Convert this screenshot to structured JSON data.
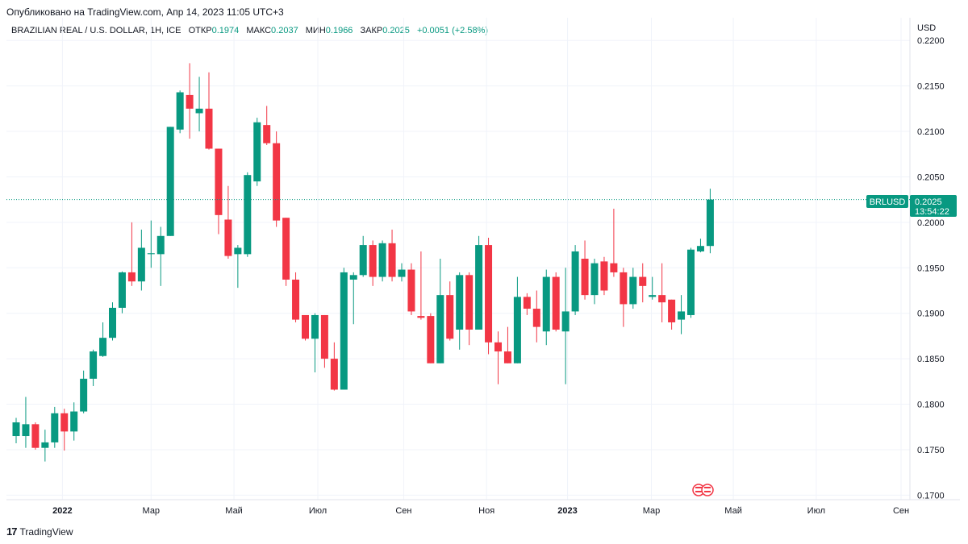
{
  "header": {
    "published": "Опубликовано на TradingView.com, Апр 14, 2023 11:05 UTC+3"
  },
  "legend": {
    "symbol": "BRAZILIAN REAL / U.S. DOLLAR, 1H, ICE",
    "open_label": "ОТКР",
    "open_value": "0.1974",
    "high_label": "МАКС",
    "high_value": "0.2037",
    "low_label": "МИН",
    "low_value": "0.1966",
    "close_label": "ЗАКР",
    "close_value": "0.2025",
    "change": "+0.0051 (+2.58%)"
  },
  "price_tag": {
    "ticker": "BRLUSD",
    "price": "0.2025",
    "countdown": "13:54:22"
  },
  "footer": {
    "logo_mark": "17",
    "brand": "TradingView"
  },
  "colors": {
    "up": "#089981",
    "down": "#F23645",
    "grid": "#F0F3FA",
    "last_line": "#089981"
  },
  "chart_data": {
    "type": "candlestick",
    "currency_label": "USD",
    "ylim": [
      0.1695,
      0.2225
    ],
    "y_ticks": [
      "0.2200",
      "0.2150",
      "0.2100",
      "0.2050",
      "0.2000",
      "0.1950",
      "0.1900",
      "0.1850",
      "0.1800",
      "0.1750",
      "0.1700"
    ],
    "x_ticks": [
      {
        "label": "2022",
        "bold": true,
        "i": 4.8
      },
      {
        "label": "Мар",
        "bold": false,
        "i": 14
      },
      {
        "label": "Май",
        "bold": false,
        "i": 22.6
      },
      {
        "label": "Июл",
        "bold": false,
        "i": 31.3
      },
      {
        "label": "Сен",
        "bold": false,
        "i": 40.2
      },
      {
        "label": "Ноя",
        "bold": false,
        "i": 48.8
      },
      {
        "label": "2023",
        "bold": true,
        "i": 57.2
      },
      {
        "label": "Май",
        "bold": false,
        "i": 74.4
      },
      {
        "label": "Мар",
        "bold": false,
        "i": 65.9
      },
      {
        "label": "Июл",
        "bold": false,
        "i": 83.0
      },
      {
        "label": "Сен",
        "bold": false,
        "i": 91.8
      }
    ],
    "last_price": 0.2025,
    "candles": [
      {
        "o": 0.1765,
        "h": 0.1785,
        "l": 0.1757,
        "c": 0.178
      },
      {
        "o": 0.1765,
        "h": 0.1808,
        "l": 0.1752,
        "c": 0.1778
      },
      {
        "o": 0.1778,
        "h": 0.178,
        "l": 0.175,
        "c": 0.1752
      },
      {
        "o": 0.1752,
        "h": 0.1772,
        "l": 0.1737,
        "c": 0.1758
      },
      {
        "o": 0.1758,
        "h": 0.1797,
        "l": 0.1752,
        "c": 0.179
      },
      {
        "o": 0.179,
        "h": 0.1795,
        "l": 0.1749,
        "c": 0.177
      },
      {
        "o": 0.177,
        "h": 0.1802,
        "l": 0.176,
        "c": 0.1792
      },
      {
        "o": 0.1792,
        "h": 0.1837,
        "l": 0.179,
        "c": 0.1828
      },
      {
        "o": 0.1828,
        "h": 0.186,
        "l": 0.182,
        "c": 0.1858
      },
      {
        "o": 0.1853,
        "h": 0.189,
        "l": 0.1852,
        "c": 0.1873
      },
      {
        "o": 0.1873,
        "h": 0.1912,
        "l": 0.187,
        "c": 0.1906
      },
      {
        "o": 0.1906,
        "h": 0.1946,
        "l": 0.19,
        "c": 0.1945
      },
      {
        "o": 0.1945,
        "h": 0.2,
        "l": 0.193,
        "c": 0.1935
      },
      {
        "o": 0.1935,
        "h": 0.1992,
        "l": 0.1925,
        "c": 0.1972
      },
      {
        "o": 0.1965,
        "h": 0.2002,
        "l": 0.195,
        "c": 0.1966
      },
      {
        "o": 0.1965,
        "h": 0.1995,
        "l": 0.193,
        "c": 0.1985
      },
      {
        "o": 0.1985,
        "h": 0.2105,
        "l": 0.1985,
        "c": 0.2105
      },
      {
        "o": 0.2102,
        "h": 0.2145,
        "l": 0.2098,
        "c": 0.2143
      },
      {
        "o": 0.214,
        "h": 0.2175,
        "l": 0.2092,
        "c": 0.2125
      },
      {
        "o": 0.212,
        "h": 0.216,
        "l": 0.21,
        "c": 0.2125
      },
      {
        "o": 0.2125,
        "h": 0.2165,
        "l": 0.208,
        "c": 0.2081
      },
      {
        "o": 0.2081,
        "h": 0.2081,
        "l": 0.1987,
        "c": 0.2008
      },
      {
        "o": 0.2003,
        "h": 0.204,
        "l": 0.196,
        "c": 0.1963
      },
      {
        "o": 0.1965,
        "h": 0.1975,
        "l": 0.1928,
        "c": 0.1972
      },
      {
        "o": 0.1965,
        "h": 0.2055,
        "l": 0.1962,
        "c": 0.2052
      },
      {
        "o": 0.2045,
        "h": 0.2115,
        "l": 0.204,
        "c": 0.211
      },
      {
        "o": 0.2107,
        "h": 0.2128,
        "l": 0.2085,
        "c": 0.2087
      },
      {
        "o": 0.2087,
        "h": 0.21,
        "l": 0.1995,
        "c": 0.2002
      },
      {
        "o": 0.2005,
        "h": 0.2005,
        "l": 0.193,
        "c": 0.1937
      },
      {
        "o": 0.1937,
        "h": 0.1945,
        "l": 0.189,
        "c": 0.1893
      },
      {
        "o": 0.1898,
        "h": 0.1898,
        "l": 0.187,
        "c": 0.1872
      },
      {
        "o": 0.1872,
        "h": 0.19,
        "l": 0.1835,
        "c": 0.1898
      },
      {
        "o": 0.1898,
        "h": 0.1898,
        "l": 0.184,
        "c": 0.185
      },
      {
        "o": 0.185,
        "h": 0.1868,
        "l": 0.1815,
        "c": 0.1816
      },
      {
        "o": 0.1816,
        "h": 0.195,
        "l": 0.1816,
        "c": 0.1945
      },
      {
        "o": 0.1937,
        "h": 0.1945,
        "l": 0.1888,
        "c": 0.1942
      },
      {
        "o": 0.1942,
        "h": 0.1985,
        "l": 0.194,
        "c": 0.1975
      },
      {
        "o": 0.1975,
        "h": 0.198,
        "l": 0.193,
        "c": 0.194
      },
      {
        "o": 0.194,
        "h": 0.198,
        "l": 0.1935,
        "c": 0.1977
      },
      {
        "o": 0.1977,
        "h": 0.1992,
        "l": 0.1935,
        "c": 0.194
      },
      {
        "o": 0.194,
        "h": 0.1955,
        "l": 0.1935,
        "c": 0.1948
      },
      {
        "o": 0.1948,
        "h": 0.1955,
        "l": 0.1898,
        "c": 0.1902
      },
      {
        "o": 0.1897,
        "h": 0.1968,
        "l": 0.1893,
        "c": 0.1895
      },
      {
        "o": 0.1897,
        "h": 0.19,
        "l": 0.1845,
        "c": 0.1845
      },
      {
        "o": 0.1845,
        "h": 0.196,
        "l": 0.1845,
        "c": 0.192
      },
      {
        "o": 0.192,
        "h": 0.1935,
        "l": 0.187,
        "c": 0.1872
      },
      {
        "o": 0.1882,
        "h": 0.1945,
        "l": 0.186,
        "c": 0.1942
      },
      {
        "o": 0.1942,
        "h": 0.1945,
        "l": 0.1865,
        "c": 0.1882
      },
      {
        "o": 0.1882,
        "h": 0.1985,
        "l": 0.1882,
        "c": 0.1975
      },
      {
        "o": 0.1975,
        "h": 0.1983,
        "l": 0.1855,
        "c": 0.1868
      },
      {
        "o": 0.1868,
        "h": 0.188,
        "l": 0.1822,
        "c": 0.1858
      },
      {
        "o": 0.1858,
        "h": 0.1885,
        "l": 0.1845,
        "c": 0.1845
      },
      {
        "o": 0.1845,
        "h": 0.194,
        "l": 0.1845,
        "c": 0.1918
      },
      {
        "o": 0.1918,
        "h": 0.1922,
        "l": 0.1898,
        "c": 0.1905
      },
      {
        "o": 0.1905,
        "h": 0.1925,
        "l": 0.1868,
        "c": 0.1885
      },
      {
        "o": 0.188,
        "h": 0.1948,
        "l": 0.1865,
        "c": 0.194
      },
      {
        "o": 0.194,
        "h": 0.1945,
        "l": 0.188,
        "c": 0.1882
      },
      {
        "o": 0.188,
        "h": 0.195,
        "l": 0.1822,
        "c": 0.1902
      },
      {
        "o": 0.1902,
        "h": 0.1975,
        "l": 0.1898,
        "c": 0.1968
      },
      {
        "o": 0.196,
        "h": 0.198,
        "l": 0.1915,
        "c": 0.192
      },
      {
        "o": 0.192,
        "h": 0.196,
        "l": 0.191,
        "c": 0.1955
      },
      {
        "o": 0.1957,
        "h": 0.1962,
        "l": 0.192,
        "c": 0.1925
      },
      {
        "o": 0.1955,
        "h": 0.2015,
        "l": 0.194,
        "c": 0.1945
      },
      {
        "o": 0.1945,
        "h": 0.195,
        "l": 0.1885,
        "c": 0.191
      },
      {
        "o": 0.191,
        "h": 0.195,
        "l": 0.1905,
        "c": 0.194
      },
      {
        "o": 0.194,
        "h": 0.1955,
        "l": 0.1912,
        "c": 0.193
      },
      {
        "o": 0.1918,
        "h": 0.194,
        "l": 0.1915,
        "c": 0.192
      },
      {
        "o": 0.192,
        "h": 0.1955,
        "l": 0.189,
        "c": 0.1912
      },
      {
        "o": 0.1915,
        "h": 0.1915,
        "l": 0.1882,
        "c": 0.189
      },
      {
        "o": 0.1893,
        "h": 0.192,
        "l": 0.1877,
        "c": 0.1902
      },
      {
        "o": 0.1898,
        "h": 0.1972,
        "l": 0.1895,
        "c": 0.197
      },
      {
        "o": 0.1968,
        "h": 0.1982,
        "l": 0.1967,
        "c": 0.1974
      },
      {
        "o": 0.1974,
        "h": 0.2037,
        "l": 0.1966,
        "c": 0.2025
      }
    ]
  }
}
